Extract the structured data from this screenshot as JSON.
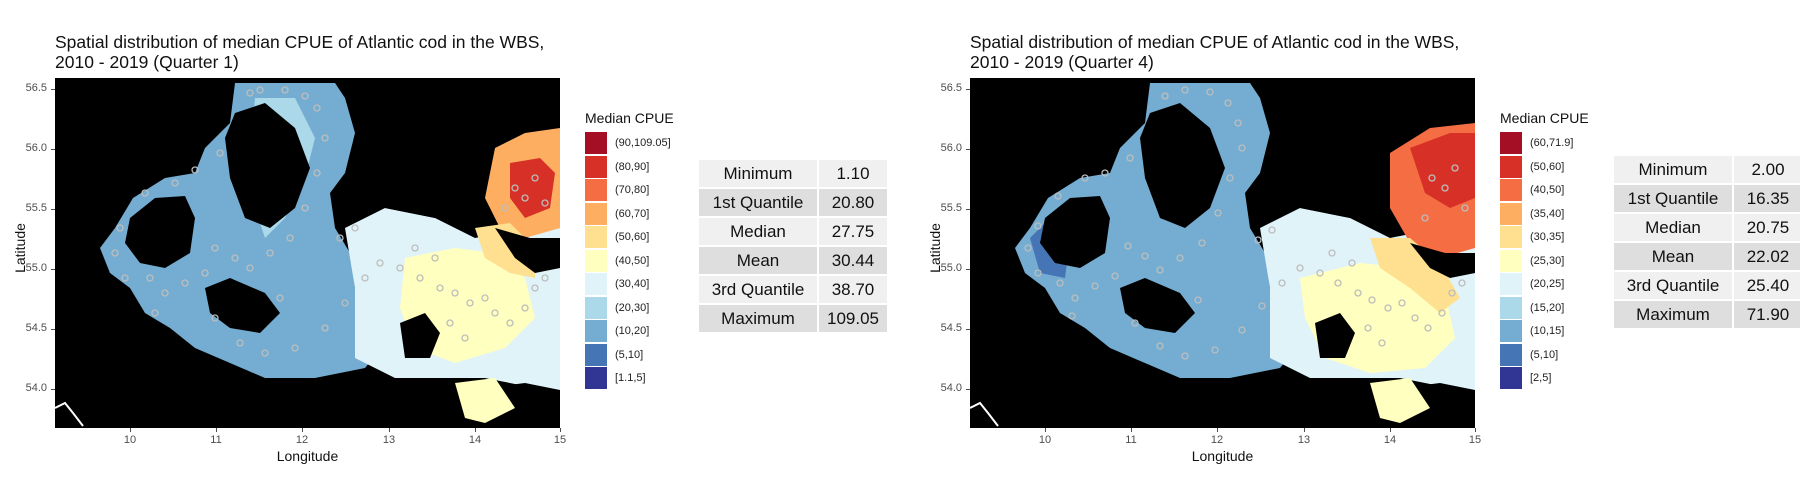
{
  "panels": [
    {
      "title_line1": "Spatial distribution of median CPUE of Atlantic cod in the WBS,",
      "title_line2": "2010 - 2019 (Quarter 1)",
      "legend": {
        "title": "Median CPUE",
        "items": [
          {
            "label": "(90,109.05]",
            "color": "#a50f26"
          },
          {
            "label": "(80,90]",
            "color": "#d73027"
          },
          {
            "label": "(70,80]",
            "color": "#f46d43"
          },
          {
            "label": "(60,70]",
            "color": "#fdae61"
          },
          {
            "label": "(50,60]",
            "color": "#fee090"
          },
          {
            "label": "(40,50]",
            "color": "#ffffbf"
          },
          {
            "label": "(30,40]",
            "color": "#e0f3f8"
          },
          {
            "label": "(20,30]",
            "color": "#abd9e9"
          },
          {
            "label": "(10,20]",
            "color": "#74add1"
          },
          {
            "label": "(5,10]",
            "color": "#4575b4"
          },
          {
            "label": "[1.1,5]",
            "color": "#313695"
          }
        ]
      },
      "stats": [
        {
          "label": "Minimum",
          "value": "1.10"
        },
        {
          "label": "1st Quantile",
          "value": "20.80"
        },
        {
          "label": "Median",
          "value": "27.75"
        },
        {
          "label": "Mean",
          "value": "30.44"
        },
        {
          "label": "3rd Quantile",
          "value": "38.70"
        },
        {
          "label": "Maximum",
          "value": "109.05"
        }
      ]
    },
    {
      "title_line1": "Spatial distribution of median CPUE of Atlantic cod in the WBS,",
      "title_line2": "2010 - 2019 (Quarter 4)",
      "legend": {
        "title": "Median CPUE",
        "items": [
          {
            "label": "(60,71.9]",
            "color": "#a50f26"
          },
          {
            "label": "(50,60]",
            "color": "#d73027"
          },
          {
            "label": "(40,50]",
            "color": "#f46d43"
          },
          {
            "label": "(35,40]",
            "color": "#fdae61"
          },
          {
            "label": "(30,35]",
            "color": "#fee090"
          },
          {
            "label": "(25,30]",
            "color": "#ffffbf"
          },
          {
            "label": "(20,25]",
            "color": "#e0f3f8"
          },
          {
            "label": "(15,20]",
            "color": "#abd9e9"
          },
          {
            "label": "(10,15]",
            "color": "#74add1"
          },
          {
            "label": "(5,10]",
            "color": "#4575b4"
          },
          {
            "label": "[2,5]",
            "color": "#313695"
          }
        ]
      },
      "stats": [
        {
          "label": "Minimum",
          "value": "2.00"
        },
        {
          "label": "1st Quantile",
          "value": "16.35"
        },
        {
          "label": "Median",
          "value": "20.75"
        },
        {
          "label": "Mean",
          "value": "22.02"
        },
        {
          "label": "3rd Quantile",
          "value": "25.40"
        },
        {
          "label": "Maximum",
          "value": "71.90"
        }
      ]
    }
  ],
  "axes": {
    "xlabel": "Longitude",
    "ylabel": "Latitude",
    "xticks": [
      "10",
      "11",
      "12",
      "13",
      "14",
      "15"
    ],
    "yticks": [
      "56.5",
      "56.0",
      "55.5",
      "55.0",
      "54.5",
      "54.0"
    ],
    "xlim": [
      9.15,
      15.0
    ],
    "ylim": [
      53.7,
      56.6
    ]
  },
  "colors": {
    "land": "#000000",
    "points": "#bdbdbd"
  }
}
